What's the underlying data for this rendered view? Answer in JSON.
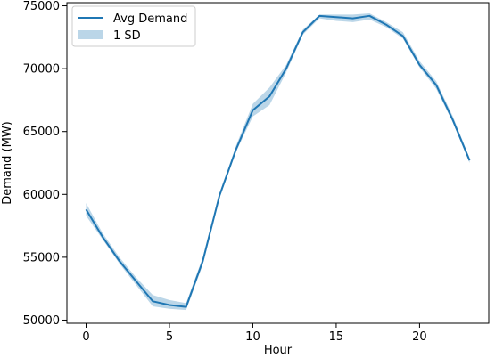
{
  "chart_data": {
    "type": "line",
    "title": "",
    "xlabel": "Hour",
    "ylabel": "Demand (MW)",
    "x": [
      0,
      1,
      2,
      3,
      4,
      5,
      6,
      7,
      8,
      9,
      10,
      11,
      12,
      13,
      14,
      15,
      16,
      17,
      18,
      19,
      20,
      21,
      22,
      23
    ],
    "series": [
      {
        "name": "Avg Demand",
        "type": "line",
        "color": "#1f77b4",
        "values": [
          58800,
          56600,
          54700,
          53100,
          51500,
          51200,
          51050,
          54700,
          59900,
          63600,
          66700,
          67800,
          70000,
          72900,
          74200,
          74100,
          74000,
          74200,
          73500,
          72600,
          70300,
          68700,
          65900,
          62700
        ]
      },
      {
        "name": "1 SD",
        "type": "band",
        "color": "#1f77b4",
        "opacity": 0.3,
        "lower": [
          58300,
          56400,
          54500,
          52800,
          51100,
          50900,
          50800,
          54400,
          59700,
          63400,
          66200,
          67100,
          69700,
          72700,
          74000,
          73800,
          73700,
          73900,
          73300,
          72400,
          70100,
          68400,
          65700,
          62500
        ],
        "upper": [
          59300,
          56900,
          55000,
          53400,
          52000,
          51600,
          51350,
          55000,
          60100,
          63900,
          67200,
          68500,
          70300,
          73100,
          74300,
          74300,
          74300,
          74400,
          73700,
          72900,
          70600,
          69000,
          66200,
          62900
        ]
      }
    ],
    "xlim": [
      -1.15,
      24.15
    ],
    "ylim": [
      49750,
      75250
    ],
    "xticks": [
      0,
      5,
      10,
      15,
      20
    ],
    "yticks": [
      50000,
      55000,
      60000,
      65000,
      70000,
      75000
    ],
    "grid": false,
    "legend": {
      "placement": "top-left",
      "entries": [
        "Avg Demand",
        "1 SD"
      ]
    }
  }
}
